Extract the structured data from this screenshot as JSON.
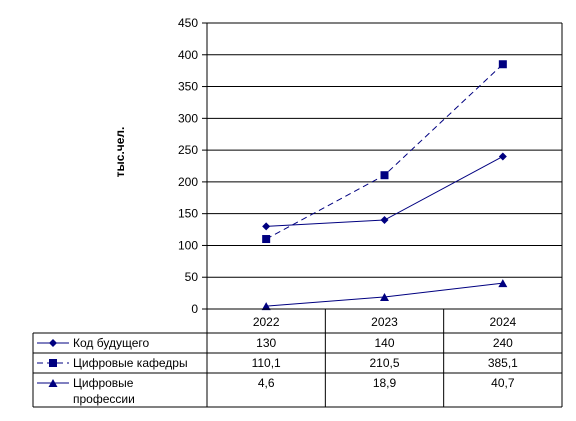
{
  "chart_data": {
    "type": "line",
    "ylabel": "тыс.чел.",
    "ylim": [
      0,
      450
    ],
    "y_ticks": [
      0,
      50,
      100,
      150,
      200,
      250,
      300,
      350,
      400,
      450
    ],
    "categories": [
      "2022",
      "2023",
      "2024"
    ],
    "grid": true,
    "legend": "data-table-left",
    "series": [
      {
        "name": "Код будущего",
        "values": [
          130,
          140,
          240
        ],
        "labels": [
          "130",
          "140",
          "240"
        ],
        "marker": "diamond",
        "dash": "solid",
        "color": "#000080"
      },
      {
        "name": "Цифровые кафедры",
        "values": [
          110.1,
          210.5,
          385.1
        ],
        "labels": [
          "110,1",
          "210,5",
          "385,1"
        ],
        "marker": "square",
        "dash": "dashed",
        "color": "#000080"
      },
      {
        "name": "Цифровые профессии",
        "name_lines": [
          "Цифровые",
          "профессии"
        ],
        "values": [
          4.6,
          18.9,
          40.7
        ],
        "labels": [
          "4,6",
          "18,9",
          "40,7"
        ],
        "marker": "triangle",
        "dash": "solid",
        "color": "#000080"
      }
    ]
  }
}
